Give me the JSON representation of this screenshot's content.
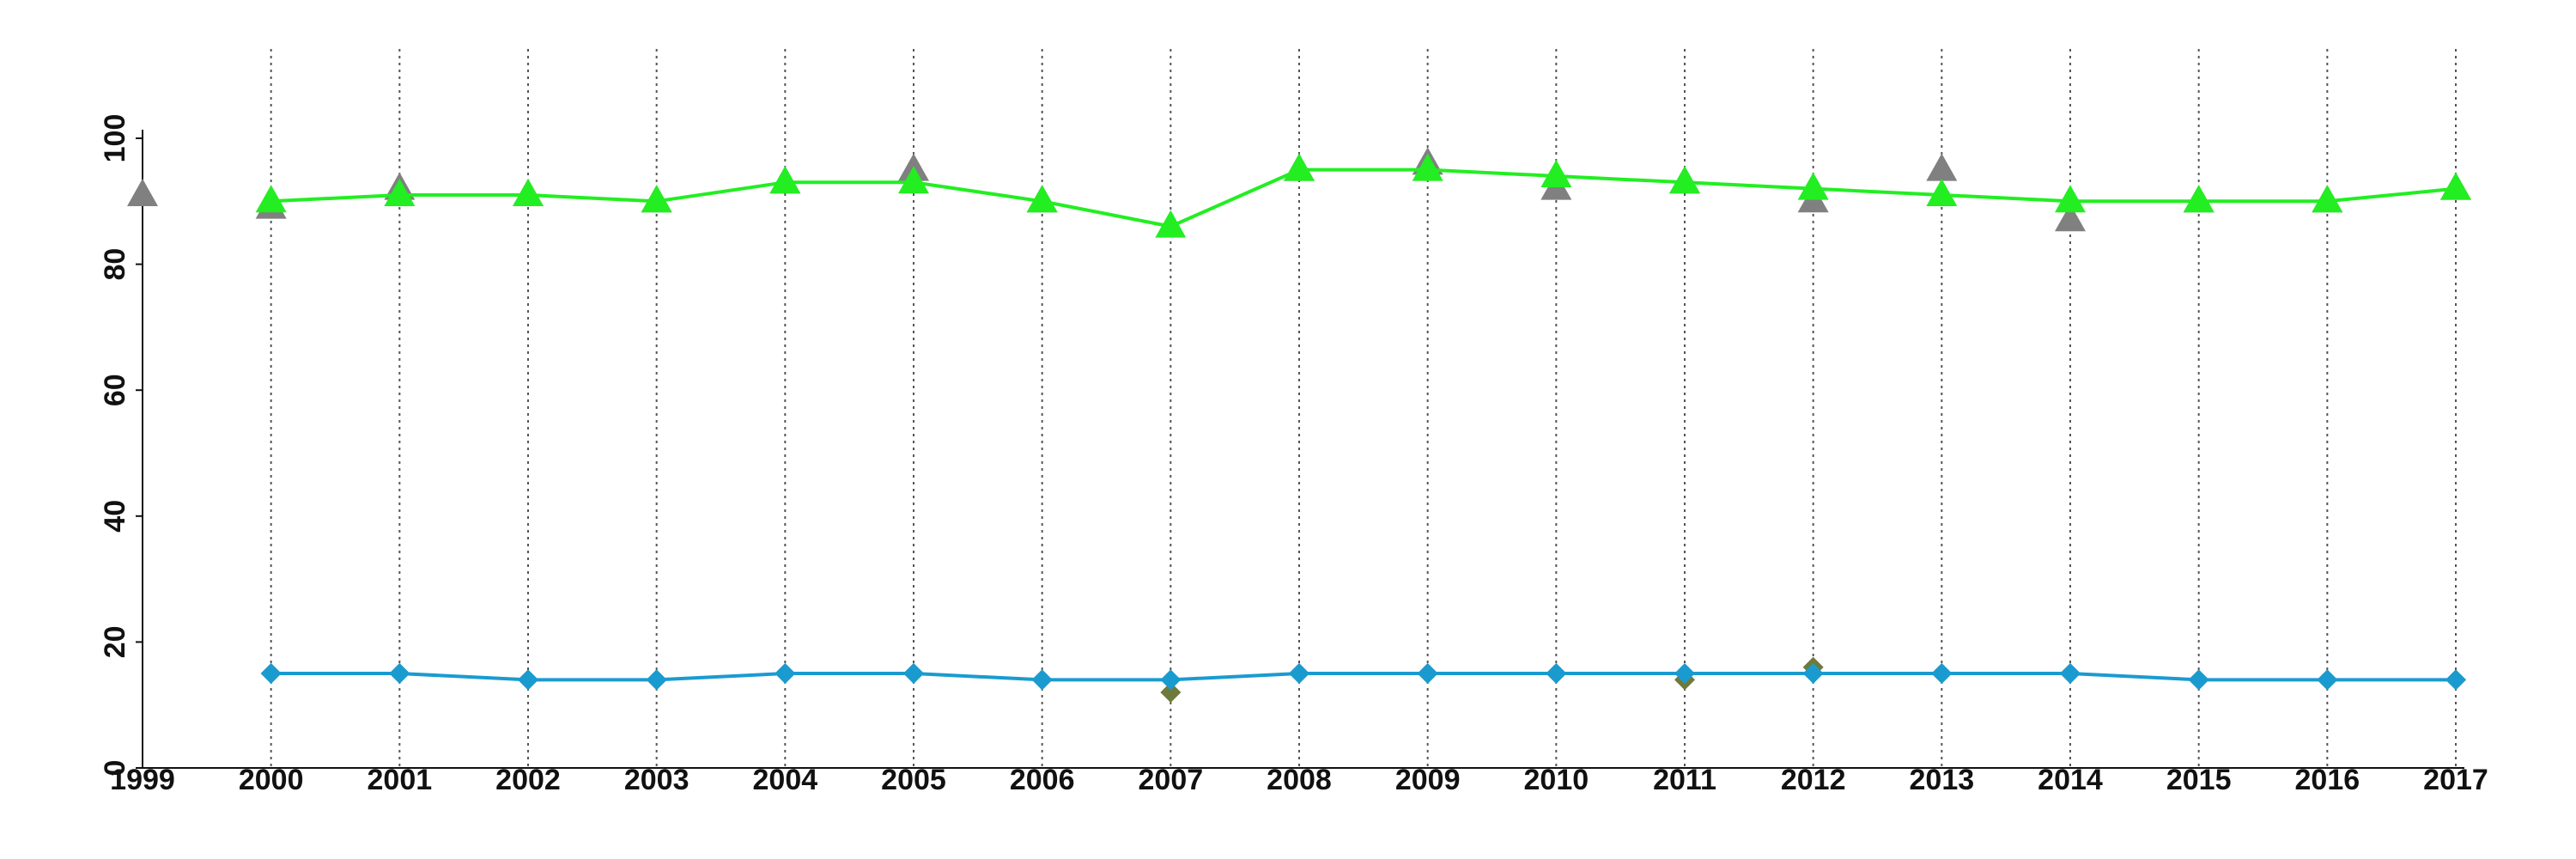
{
  "chart_data": {
    "type": "line",
    "x": [
      1999,
      2000,
      2001,
      2002,
      2003,
      2004,
      2005,
      2006,
      2007,
      2008,
      2009,
      2010,
      2011,
      2012,
      2013,
      2014,
      2015,
      2016,
      2017
    ],
    "xlim": [
      1999,
      2017
    ],
    "xticks": [
      1999,
      2000,
      2001,
      2002,
      2003,
      2004,
      2005,
      2006,
      2007,
      2008,
      2009,
      2010,
      2011,
      2012,
      2013,
      2014,
      2015,
      2016,
      2017
    ],
    "ylim": [
      0,
      100
    ],
    "yticks": [
      0,
      20,
      40,
      60,
      80,
      100
    ],
    "grid": true,
    "series": [
      {
        "color": "#808080",
        "marker": "triangle",
        "line": false,
        "values": [
          91,
          89,
          92,
          91,
          90,
          93,
          95,
          90,
          null,
          95,
          96,
          92,
          93,
          90,
          95,
          87,
          90,
          90,
          92
        ]
      },
      {
        "color": "#22ee22",
        "marker": "triangle",
        "line": true,
        "values": [
          null,
          90,
          91,
          91,
          90,
          93,
          93,
          90,
          86,
          95,
          95,
          94,
          93,
          92,
          91,
          90,
          90,
          90,
          92
        ]
      },
      {
        "color": "#6e7a3c",
        "marker": "diamond",
        "line": false,
        "values": [
          null,
          15,
          15,
          14,
          14,
          15,
          15,
          14,
          12,
          15,
          15,
          15,
          14,
          16,
          15,
          15,
          14,
          14,
          14
        ]
      },
      {
        "color": "#1a9bd0",
        "marker": "diamond",
        "line": true,
        "values": [
          null,
          15,
          15,
          14,
          14,
          15,
          15,
          14,
          14,
          15,
          15,
          15,
          15,
          15,
          15,
          15,
          14,
          14,
          14
        ]
      }
    ]
  }
}
